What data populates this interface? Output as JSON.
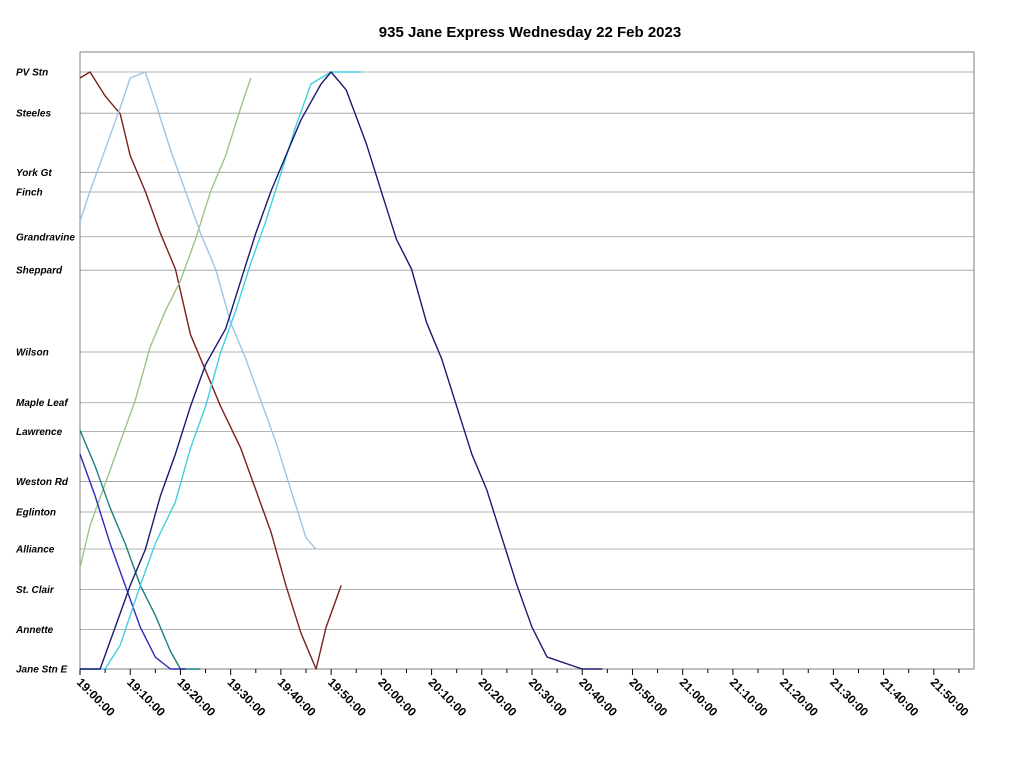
{
  "chart_data": {
    "type": "line",
    "title": "935 Jane Express Wednesday 22 Feb 2023",
    "xlabel": "",
    "ylabel": "",
    "x_unit": "time of day",
    "xlim": [
      "19:00:00",
      "21:58:00"
    ],
    "x_ticks": [
      "19:00:00",
      "19:10:00",
      "19:20:00",
      "19:30:00",
      "19:40:00",
      "19:50:00",
      "20:00:00",
      "20:10:00",
      "20:20:00",
      "20:30:00",
      "20:40:00",
      "20:50:00",
      "21:00:00",
      "21:10:00",
      "21:20:00",
      "21:30:00",
      "21:40:00",
      "21:50:00"
    ],
    "stations": [
      {
        "name": "PV Stn",
        "pos": 0
      },
      {
        "name": "Steeles",
        "pos": 6.9
      },
      {
        "name": "York Gt",
        "pos": 16.8
      },
      {
        "name": "Finch",
        "pos": 20.1
      },
      {
        "name": "Grandravine",
        "pos": 27.6
      },
      {
        "name": "Sheppard",
        "pos": 33.2
      },
      {
        "name": "Wilson",
        "pos": 46.9
      },
      {
        "name": "Maple Leaf",
        "pos": 55.4
      },
      {
        "name": "Lawrence",
        "pos": 60.2
      },
      {
        "name": "Weston Rd",
        "pos": 68.6
      },
      {
        "name": "Eglinton",
        "pos": 73.7
      },
      {
        "name": "Alliance",
        "pos": 79.9
      },
      {
        "name": "St. Clair",
        "pos": 86.7
      },
      {
        "name": "Annette",
        "pos": 93.4
      },
      {
        "name": "Jane Stn E",
        "pos": 100
      }
    ],
    "grid": true,
    "legend": "none",
    "series": [
      {
        "color": "#7a1f1f",
        "points": [
          [
            "19:00:00",
            1
          ],
          [
            "19:02:00",
            0
          ],
          [
            "19:05:00",
            4
          ],
          [
            "19:08:00",
            7
          ],
          [
            "19:10:00",
            14
          ],
          [
            "19:13:00",
            20
          ],
          [
            "19:16:00",
            27
          ],
          [
            "19:19:00",
            33
          ],
          [
            "19:22:00",
            44
          ],
          [
            "19:25:00",
            50
          ],
          [
            "19:28:00",
            56
          ],
          [
            "19:32:00",
            63
          ],
          [
            "19:35:00",
            70
          ],
          [
            "19:38:00",
            77
          ],
          [
            "19:41:00",
            86
          ],
          [
            "19:44:00",
            94
          ],
          [
            "19:47:00",
            100
          ],
          [
            "19:49:00",
            93
          ],
          [
            "19:52:00",
            86
          ]
        ]
      },
      {
        "color": "#9dc385",
        "points": [
          [
            "19:00:00",
            83
          ],
          [
            "19:02:00",
            76
          ],
          [
            "19:05:00",
            69
          ],
          [
            "19:08:00",
            62
          ],
          [
            "19:11:00",
            55
          ],
          [
            "19:14:00",
            46
          ],
          [
            "19:17:00",
            40
          ],
          [
            "19:20:00",
            35
          ],
          [
            "19:23:00",
            28
          ],
          [
            "19:26:00",
            20
          ],
          [
            "19:29:00",
            14
          ],
          [
            "19:32:00",
            6
          ],
          [
            "19:34:00",
            1
          ]
        ]
      },
      {
        "color": "#1a8080",
        "points": [
          [
            "19:00:00",
            60
          ],
          [
            "19:03:00",
            66
          ],
          [
            "19:06:00",
            73
          ],
          [
            "19:09:00",
            79
          ],
          [
            "19:12:00",
            86
          ],
          [
            "19:15:00",
            91
          ],
          [
            "19:18:00",
            97
          ],
          [
            "19:20:00",
            100
          ],
          [
            "19:24:00",
            100
          ]
        ]
      },
      {
        "color": "#2b2bbb",
        "points": [
          [
            "19:00:00",
            64
          ],
          [
            "19:03:00",
            71
          ],
          [
            "19:06:00",
            79
          ],
          [
            "19:09:00",
            86
          ],
          [
            "19:12:00",
            93
          ],
          [
            "19:15:00",
            98
          ],
          [
            "19:18:00",
            100
          ],
          [
            "19:21:00",
            100
          ]
        ]
      },
      {
        "color": "#40d0e0",
        "points": [
          [
            "19:00:00",
            100
          ],
          [
            "19:05:00",
            100
          ],
          [
            "19:08:00",
            96
          ],
          [
            "19:12:00",
            86
          ],
          [
            "19:15:00",
            79
          ],
          [
            "19:19:00",
            72
          ],
          [
            "19:22:00",
            63
          ],
          [
            "19:25:00",
            56
          ],
          [
            "19:28:00",
            47
          ],
          [
            "19:31:00",
            40
          ],
          [
            "19:34:00",
            32
          ],
          [
            "19:37:00",
            25
          ],
          [
            "19:40:00",
            17
          ],
          [
            "19:43:00",
            9
          ],
          [
            "19:46:00",
            2
          ],
          [
            "19:50:00",
            0
          ],
          [
            "19:56:00",
            0
          ]
        ]
      },
      {
        "color": "#9ec5e6",
        "points": [
          [
            "19:00:00",
            25
          ],
          [
            "19:02:00",
            20
          ],
          [
            "19:05:00",
            13
          ],
          [
            "19:08:00",
            6
          ],
          [
            "19:10:00",
            1
          ],
          [
            "19:13:00",
            0
          ],
          [
            "19:15:00",
            5
          ],
          [
            "19:18:00",
            13
          ],
          [
            "19:21:00",
            20
          ],
          [
            "19:24:00",
            27
          ],
          [
            "19:27:00",
            33
          ],
          [
            "19:30:00",
            42
          ],
          [
            "19:33:00",
            48
          ],
          [
            "19:36:00",
            55
          ],
          [
            "19:39:00",
            62
          ],
          [
            "19:42:00",
            70
          ],
          [
            "19:45:00",
            78
          ],
          [
            "19:47:00",
            80
          ]
        ]
      },
      {
        "color": "#1a1a70",
        "points": [
          [
            "19:00:00",
            100
          ],
          [
            "19:04:00",
            100
          ],
          [
            "19:07:00",
            93
          ],
          [
            "19:10:00",
            86
          ],
          [
            "19:13:00",
            80
          ],
          [
            "19:16:00",
            71
          ],
          [
            "19:19:00",
            64
          ],
          [
            "19:22:00",
            56
          ],
          [
            "19:25:00",
            49
          ],
          [
            "19:29:00",
            43
          ],
          [
            "19:32:00",
            35
          ],
          [
            "19:35:00",
            27
          ],
          [
            "19:38:00",
            20
          ],
          [
            "19:41:00",
            14
          ],
          [
            "19:44:00",
            8
          ],
          [
            "19:48:00",
            2
          ],
          [
            "19:50:00",
            0
          ],
          [
            "19:53:00",
            3
          ],
          [
            "19:57:00",
            12
          ],
          [
            "20:00:00",
            20
          ],
          [
            "20:03:00",
            28
          ],
          [
            "20:06:00",
            33
          ],
          [
            "20:09:00",
            42
          ],
          [
            "20:12:00",
            48
          ],
          [
            "20:15:00",
            56
          ],
          [
            "20:18:00",
            64
          ],
          [
            "20:21:00",
            70
          ],
          [
            "20:24:00",
            78
          ],
          [
            "20:27:00",
            86
          ],
          [
            "20:30:00",
            93
          ],
          [
            "20:33:00",
            98
          ],
          [
            "20:40:00",
            100
          ],
          [
            "20:44:00",
            100
          ]
        ]
      }
    ]
  }
}
